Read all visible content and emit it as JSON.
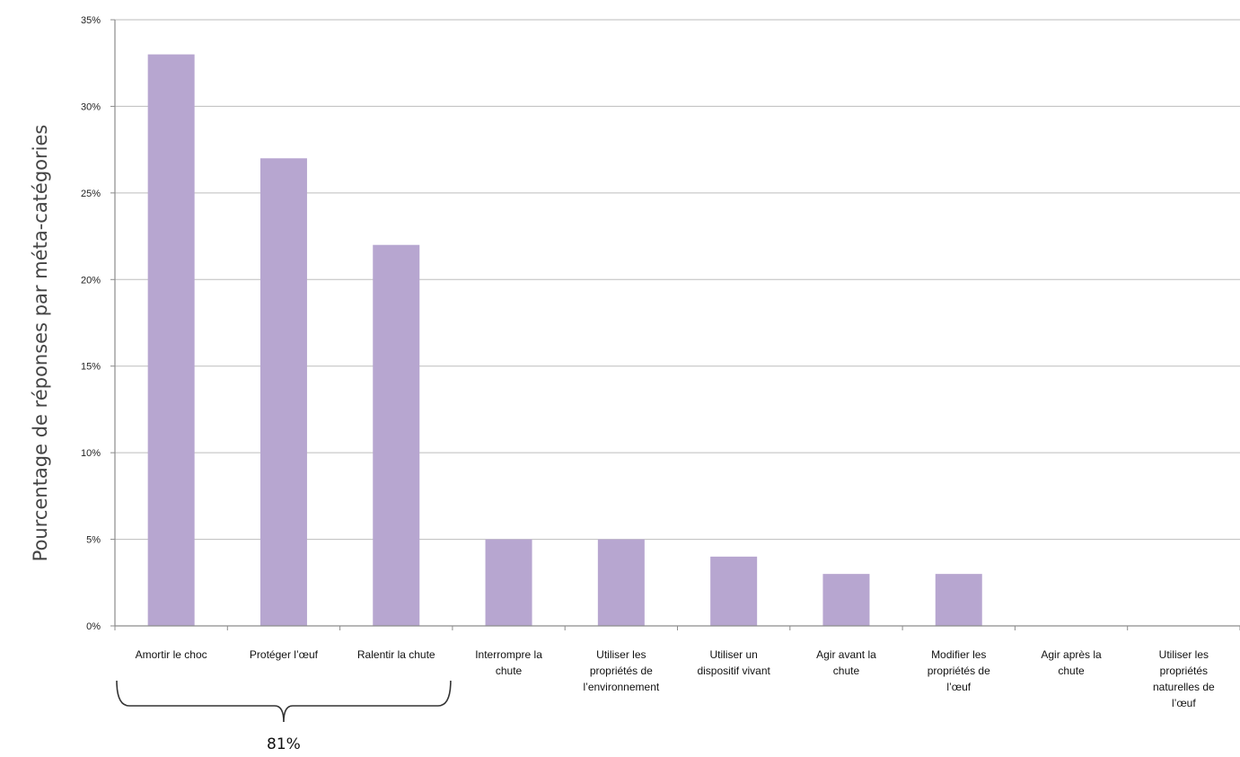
{
  "chart_data": {
    "type": "bar",
    "title": "",
    "xlabel": "",
    "ylabel": "Pourcentage de réponses par méta-catégories",
    "ylim": [
      0,
      35
    ],
    "yticks": [
      0,
      5,
      10,
      15,
      20,
      25,
      30,
      35
    ],
    "ytick_labels": [
      "0%",
      "5%",
      "10%",
      "15%",
      "20%",
      "25%",
      "30%",
      "35%"
    ],
    "grid": true,
    "legend": "none",
    "bar_color": "#b7a6d0",
    "categories": [
      [
        "Amortir le choc"
      ],
      [
        "Protéger l’œuf"
      ],
      [
        "Ralentir la chute"
      ],
      [
        "Interrompre la",
        "chute"
      ],
      [
        "Utiliser les",
        "propriétés de",
        "l’environnement"
      ],
      [
        "Utiliser un",
        "dispositif vivant"
      ],
      [
        "Agir avant la",
        "chute"
      ],
      [
        "Modifier les",
        "propriétés de",
        "l’œuf"
      ],
      [
        "Agir après la",
        "chute"
      ],
      [
        "Utiliser les",
        "propriétés",
        "naturelles de",
        "l’œuf"
      ]
    ],
    "values": [
      33,
      27,
      22,
      5,
      5,
      4,
      3,
      3,
      0,
      0
    ],
    "annotation": {
      "text": "81%",
      "brace_from_category": 0,
      "brace_to_category": 2
    }
  }
}
